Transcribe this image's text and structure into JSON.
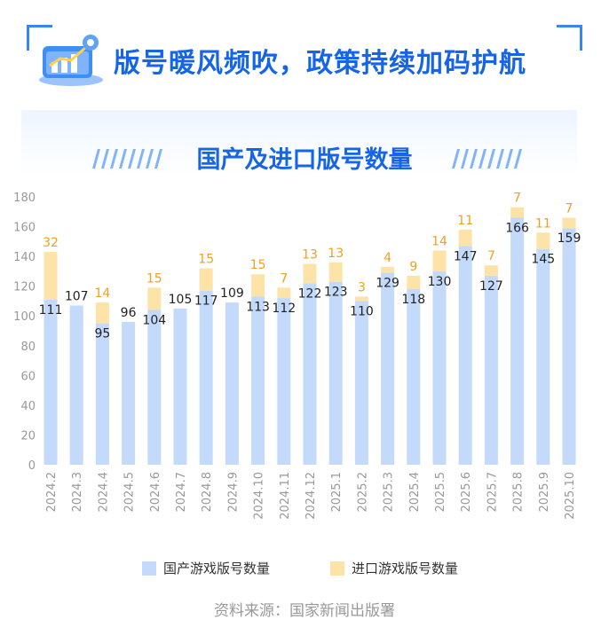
{
  "header": {
    "title": "版号暖风频吹，政策持续加码护航",
    "icon": "bar-chart-growth-icon"
  },
  "colors": {
    "accent": "#1565e8",
    "domestic": "#c3dafb",
    "imported": "#fde3a7",
    "import_label": "#f0a020",
    "axis_text": "#999999"
  },
  "chart_data": {
    "type": "bar",
    "stacked": true,
    "title": "国产及进口版号数量",
    "categories": [
      "2024.2",
      "2024.3",
      "2024.4",
      "2024.5",
      "2024.6",
      "2024.7",
      "2024.8",
      "2024.9",
      "2024.10",
      "2024.11",
      "2024.12",
      "2025.1",
      "2025.2",
      "2025.3",
      "2025.4",
      "2025.5",
      "2025.6",
      "2025.7",
      "2025.8",
      "2025.9",
      "2025.10"
    ],
    "series": [
      {
        "name": "国产游戏版号数量",
        "values": [
          111,
          107,
          95,
          96,
          104,
          105,
          117,
          109,
          113,
          112,
          122,
          123,
          110,
          129,
          118,
          130,
          147,
          127,
          166,
          145,
          159
        ]
      },
      {
        "name": "进口游戏版号数量",
        "values": [
          32,
          null,
          14,
          null,
          15,
          null,
          15,
          null,
          15,
          7,
          13,
          13,
          3,
          4,
          9,
          14,
          11,
          7,
          7,
          11,
          7
        ]
      }
    ],
    "yticks": [
      0,
      20,
      40,
      60,
      80,
      100,
      120,
      140,
      160,
      180
    ],
    "ylim": [
      0,
      180
    ],
    "grid": false,
    "legend_position": "bottom"
  },
  "source": "资料来源：国家新闻出版署"
}
